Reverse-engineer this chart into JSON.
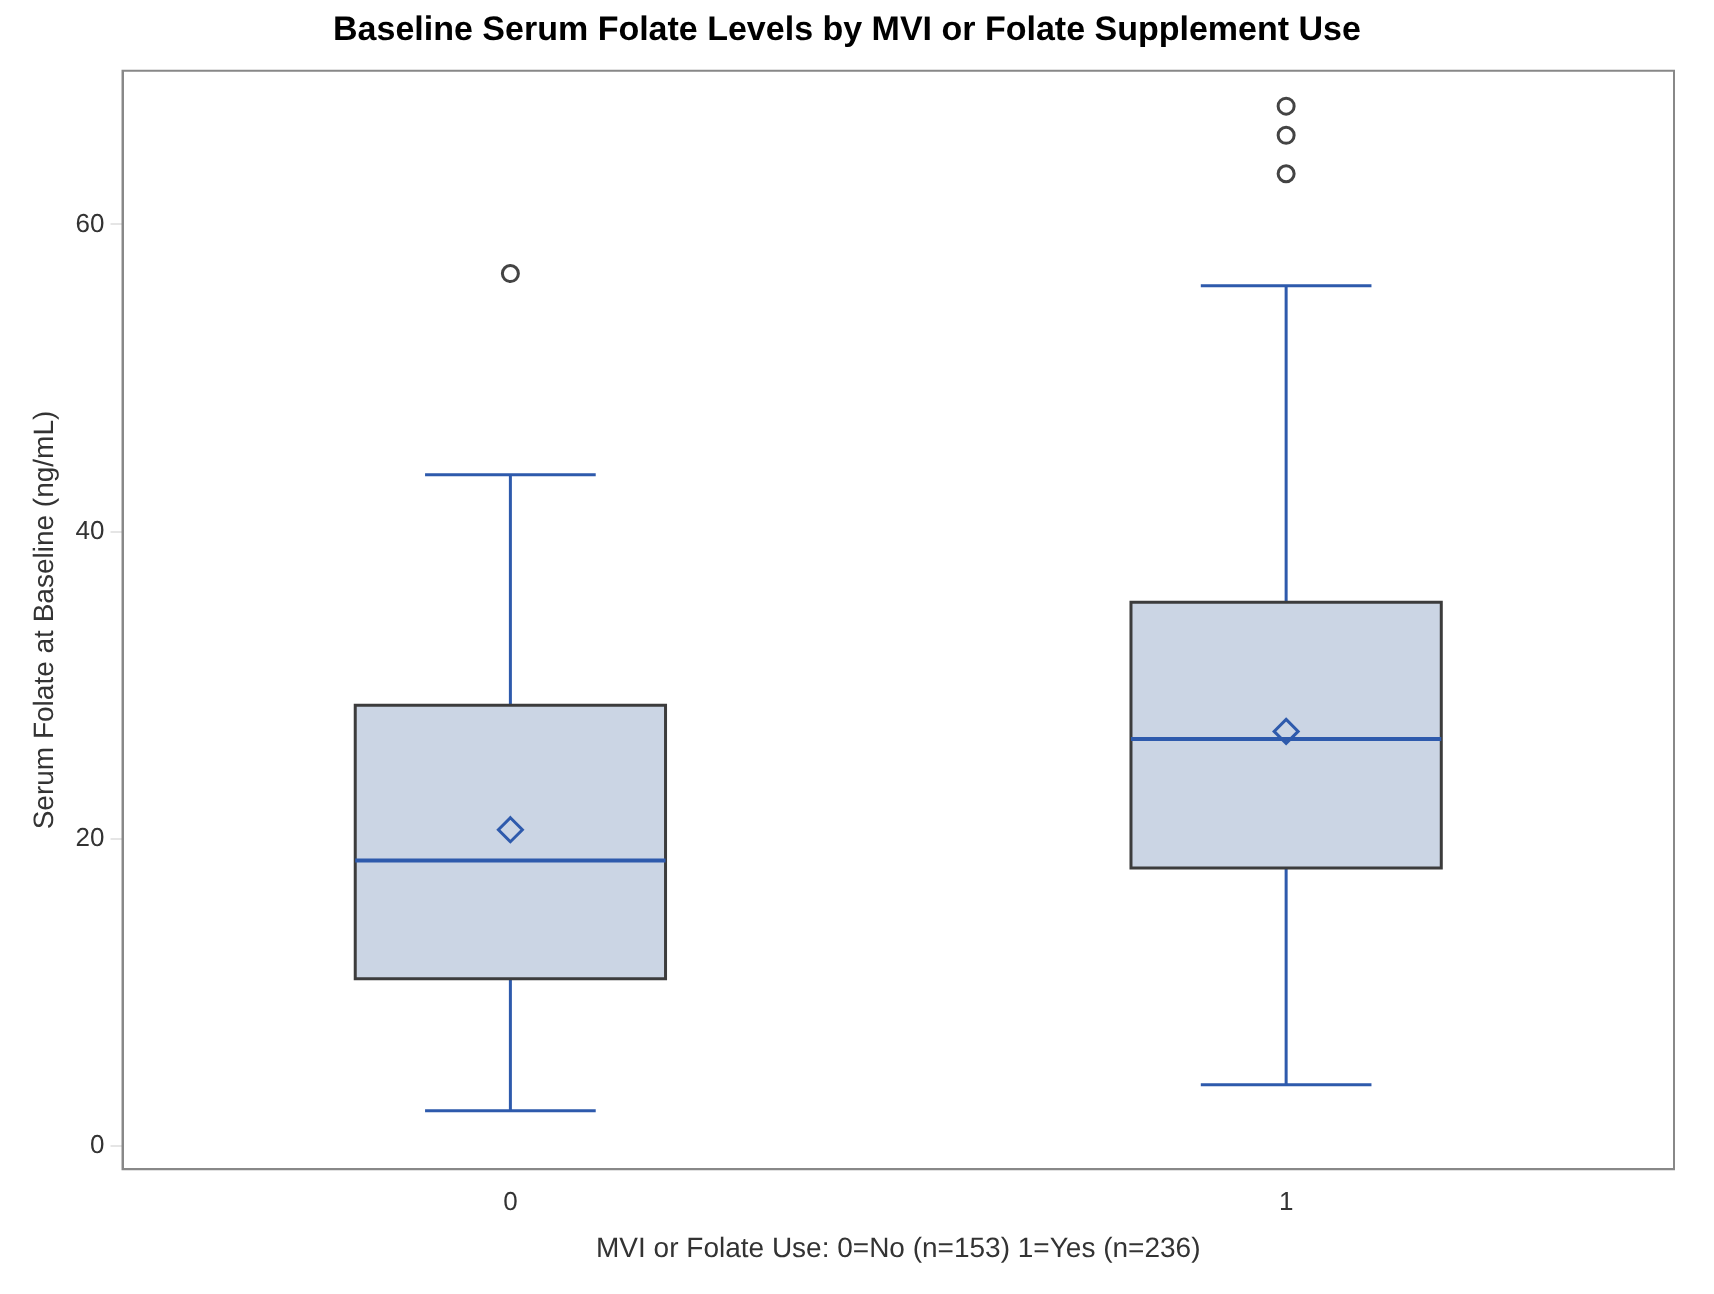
{
  "chart_data": {
    "type": "box",
    "title": "Baseline Serum Folate Levels by MVI or Folate Supplement Use",
    "xlabel": "MVI or Folate Use: 0=No (n=153) 1=Yes (n=236)",
    "ylabel": "Serum Folate at Baseline (ng/mL)",
    "categories": [
      "0",
      "1"
    ],
    "ylim": [
      -1.5,
      70
    ],
    "yticks": [
      0,
      20,
      40,
      60
    ],
    "grid": false,
    "marker": "diamond",
    "series": [
      {
        "color": "#cbd5e4",
        "boxes": [
          {
            "low": 2.3,
            "q1": 10.9,
            "median": 18.6,
            "q3": 28.7,
            "high": 43.7,
            "mean": 20.6,
            "outliers": [
              56.8
            ]
          },
          {
            "low": 4.0,
            "q1": 18.1,
            "median": 26.5,
            "q3": 35.4,
            "high": 56.0,
            "mean": 27.0,
            "outliers": [
              63.3,
              65.8,
              67.7
            ]
          }
        ]
      }
    ]
  }
}
